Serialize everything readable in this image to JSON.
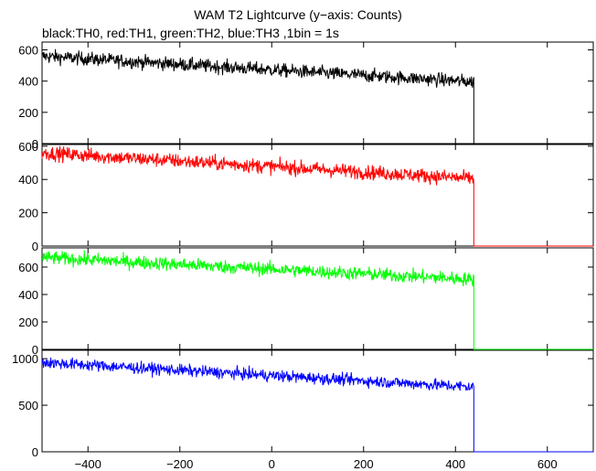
{
  "title": "WAM T2 Lightcurve (y−axis: Counts)",
  "subtitle": "black:TH0, red:TH1, green:TH2, blue:TH3 ,1bin = 1s",
  "chart_data": {
    "type": "line",
    "x_ticks": [
      -400,
      -200,
      0,
      200,
      400,
      600
    ],
    "xlim": [
      -500,
      700
    ],
    "panels": [
      {
        "name": "TH0",
        "color": "#000000",
        "ylim": [
          0,
          650
        ],
        "y_ticks": [
          0,
          200,
          400,
          600
        ],
        "start": 560,
        "end": 395,
        "noise": 22,
        "step_x": 440,
        "after": 0
      },
      {
        "name": "TH1",
        "color": "#ff0000",
        "ylim": [
          0,
          610
        ],
        "y_ticks": [
          0,
          200,
          400,
          600
        ],
        "start": 560,
        "end": 405,
        "noise": 22,
        "step_x": 440,
        "after": 0
      },
      {
        "name": "TH2",
        "color": "#00ff00",
        "ylim": [
          0,
          740
        ],
        "y_ticks": [
          0,
          200,
          400,
          600
        ],
        "start": 670,
        "end": 510,
        "noise": 25,
        "step_x": 440,
        "after": 0
      },
      {
        "name": "TH3",
        "color": "#0000ff",
        "ylim": [
          0,
          1090
        ],
        "y_ticks": [
          0,
          500,
          1000
        ],
        "start": 960,
        "end": 695,
        "noise": 32,
        "step_x": 440,
        "after": 0
      }
    ]
  }
}
